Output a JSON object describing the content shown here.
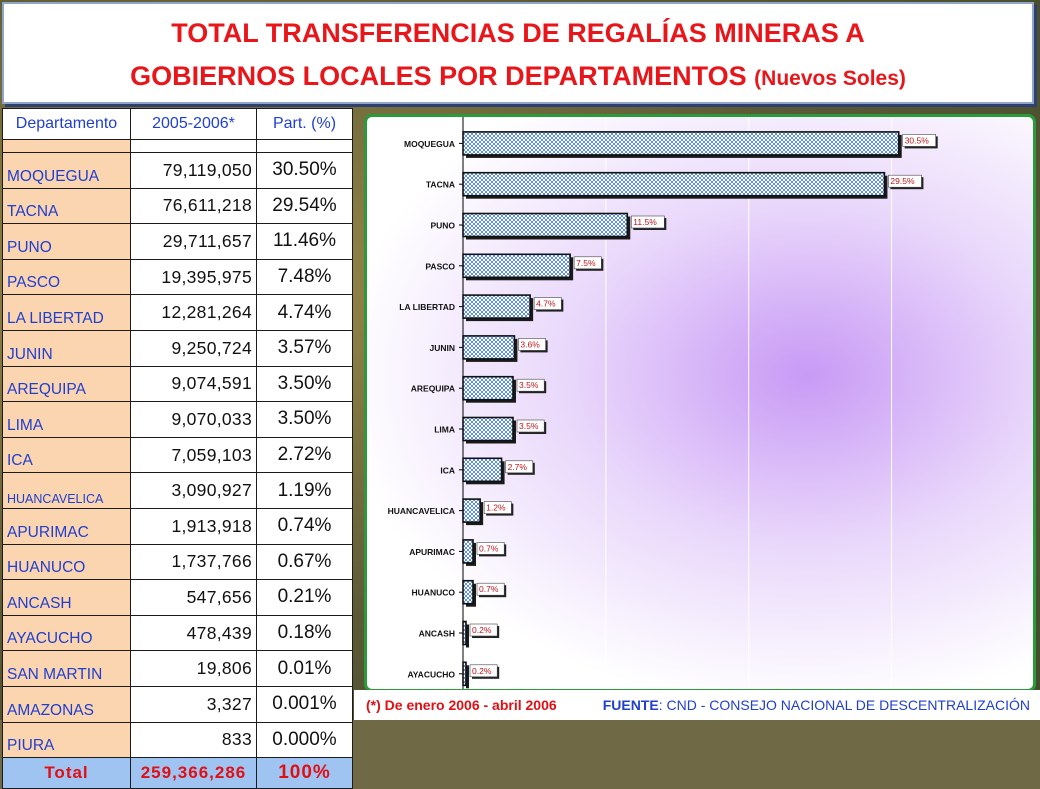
{
  "title": {
    "main1": "TOTAL TRANSFERENCIAS DE REGALÍAS MINERAS A",
    "main2": "GOBIERNOS LOCALES POR DEPARTAMENTOS",
    "units": "(Nuevos Soles)"
  },
  "table": {
    "headers": [
      "Departamento",
      "2005-2006*",
      "Part. (%)"
    ],
    "rows": [
      {
        "dep": "MOQUEGUA",
        "val": "79,119,050",
        "pct": "30.50%"
      },
      {
        "dep": "TACNA",
        "val": "76,611,218",
        "pct": "29.54%"
      },
      {
        "dep": "PUNO",
        "val": "29,711,657",
        "pct": "11.46%"
      },
      {
        "dep": "PASCO",
        "val": "19,395,975",
        "pct": "7.48%"
      },
      {
        "dep": "LA LIBERTAD",
        "val": "12,281,264",
        "pct": "4.74%"
      },
      {
        "dep": "JUNIN",
        "val": "9,250,724",
        "pct": "3.57%"
      },
      {
        "dep": "AREQUIPA",
        "val": "9,074,591",
        "pct": "3.50%"
      },
      {
        "dep": "LIMA",
        "val": "9,070,033",
        "pct": "3.50%"
      },
      {
        "dep": "ICA",
        "val": "7,059,103",
        "pct": "2.72%"
      },
      {
        "dep": "HUANCAVELICA",
        "val": "3,090,927",
        "pct": "1.19%"
      },
      {
        "dep": "APURIMAC",
        "val": "1,913,918",
        "pct": "0.74%"
      },
      {
        "dep": "HUANUCO",
        "val": "1,737,766",
        "pct": "0.67%"
      },
      {
        "dep": "ANCASH",
        "val": "547,656",
        "pct": "0.21%"
      },
      {
        "dep": "AYACUCHO",
        "val": "478,439",
        "pct": "0.18%"
      },
      {
        "dep": "SAN MARTIN",
        "val": "19,806",
        "pct": "0.01%"
      },
      {
        "dep": "AMAZONAS",
        "val": "3,327",
        "pct": "0.001%"
      },
      {
        "dep": "PIURA",
        "val": "833",
        "pct": "0.000%"
      }
    ],
    "total": {
      "label": "Total",
      "val": "259,366,286",
      "pct": "100%"
    }
  },
  "chart_data": {
    "type": "bar",
    "orientation": "horizontal",
    "categories": [
      "MOQUEGUA",
      "TACNA",
      "PUNO",
      "PASCO",
      "LA LIBERTAD",
      "JUNIN",
      "AREQUIPA",
      "LIMA",
      "ICA",
      "HUANCAVELICA",
      "APURIMAC",
      "HUANUCO",
      "ANCASH",
      "AYACUCHO"
    ],
    "values": [
      30.5,
      29.5,
      11.5,
      7.5,
      4.7,
      3.6,
      3.5,
      3.5,
      2.7,
      1.2,
      0.7,
      0.7,
      0.2,
      0.2
    ],
    "labels": [
      "30.5%",
      "29.5%",
      "11.5%",
      "7.5%",
      "4.7%",
      "3.6%",
      "3.5%",
      "3.5%",
      "2.7%",
      "1.2%",
      "0.7%",
      "0.7%",
      "0.2%",
      "0.2%"
    ],
    "xlim": [
      0,
      35
    ],
    "grid": true,
    "colors": {
      "bar_fill": "#6f9fe8",
      "bar_stroke": "#111111",
      "label_text": "#c0131a",
      "axis": "#000000"
    }
  },
  "footer": {
    "note_mark": "(*)",
    "note_text": "De enero 2006 - abril 2006",
    "source_label": "FUENTE",
    "source_text": ": CND - CONSEJO NACIONAL DE DESCENTRALIZACIÓN"
  }
}
